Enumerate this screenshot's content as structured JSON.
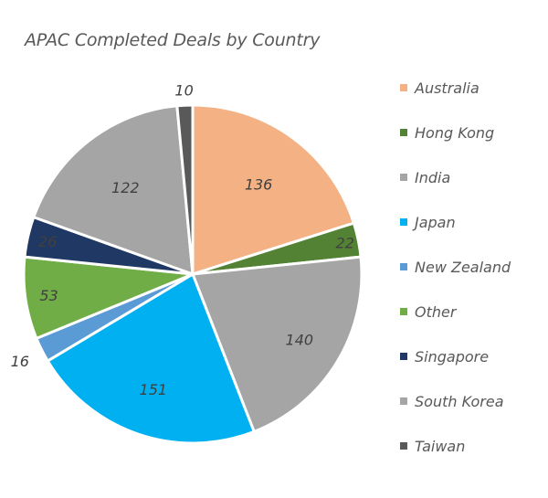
{
  "chart_data": {
    "type": "pie",
    "title": "APAC Completed Deals by Country",
    "categories": [
      "Australia",
      "Hong Kong",
      "India",
      "Japan",
      "New Zealand",
      "Other",
      "Singapore",
      "South Korea",
      "Taiwan"
    ],
    "values": [
      136,
      22,
      140,
      151,
      16,
      53,
      26,
      122,
      10
    ],
    "data_labels": [
      "136",
      "22",
      "140",
      "151",
      "16",
      "53",
      "26",
      "122",
      "10"
    ],
    "colors": [
      "#f4b183",
      "#548235",
      "#a5a5a5",
      "#00b0f0",
      "#5b9bd5",
      "#70ad47",
      "#203864",
      "#a5a5a5",
      "#595959"
    ],
    "legend_position": "right",
    "start_angle_deg": 0,
    "direction": "clockwise"
  }
}
